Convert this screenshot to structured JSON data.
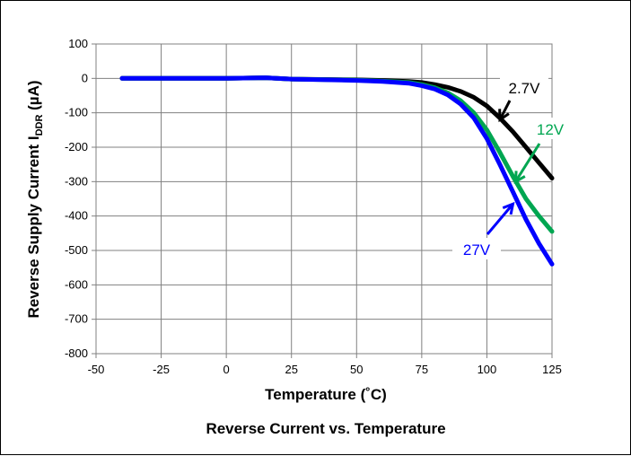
{
  "chart_data": {
    "type": "line",
    "ylabel_main": "Reverse Supply Current I",
    "ylabel_sub": "DDR",
    "ylabel_unit": " (µA)",
    "xlabel": "Temperature (˚C)",
    "caption": "Reverse Current vs. Temperature",
    "xlim": [
      -50,
      125
    ],
    "ylim": [
      -800,
      100
    ],
    "x_ticks": [
      "-50",
      "-25",
      "0",
      "25",
      "50",
      "75",
      "100",
      "125"
    ],
    "y_ticks": [
      "100",
      "0",
      "-100",
      "-200",
      "-300",
      "-400",
      "-500",
      "-600",
      "-700",
      "-800"
    ],
    "grid": true,
    "series": [
      {
        "name": "2.7V",
        "color": "#000000",
        "x": [
          -40,
          -25,
          0,
          15,
          25,
          50,
          60,
          70,
          75,
          80,
          85,
          90,
          95,
          100,
          105,
          110,
          115,
          120,
          125
        ],
        "y": [
          0,
          0,
          0,
          2,
          -2,
          -4,
          -6,
          -9,
          -12,
          -18,
          -26,
          -38,
          -55,
          -80,
          -115,
          -155,
          -200,
          -245,
          -290
        ]
      },
      {
        "name": "12V",
        "color": "#00a651",
        "x": [
          -40,
          -25,
          0,
          15,
          25,
          50,
          60,
          70,
          75,
          80,
          85,
          90,
          95,
          100,
          105,
          110,
          115,
          120,
          125
        ],
        "y": [
          0,
          0,
          0,
          2,
          -2,
          -5,
          -8,
          -12,
          -18,
          -27,
          -42,
          -65,
          -100,
          -150,
          -215,
          -285,
          -350,
          -400,
          -445
        ]
      },
      {
        "name": "27V",
        "color": "#0000ff",
        "x": [
          -40,
          -25,
          0,
          15,
          25,
          50,
          60,
          70,
          75,
          80,
          85,
          90,
          95,
          100,
          105,
          110,
          115,
          120,
          125
        ],
        "y": [
          0,
          0,
          0,
          2,
          -2,
          -6,
          -9,
          -14,
          -21,
          -31,
          -48,
          -75,
          -115,
          -175,
          -250,
          -330,
          -410,
          -480,
          -540
        ]
      }
    ],
    "annotations": [
      {
        "series": "2.7V",
        "label": "2.7V"
      },
      {
        "series": "12V",
        "label": "12V"
      },
      {
        "series": "27V",
        "label": "27V"
      }
    ]
  }
}
